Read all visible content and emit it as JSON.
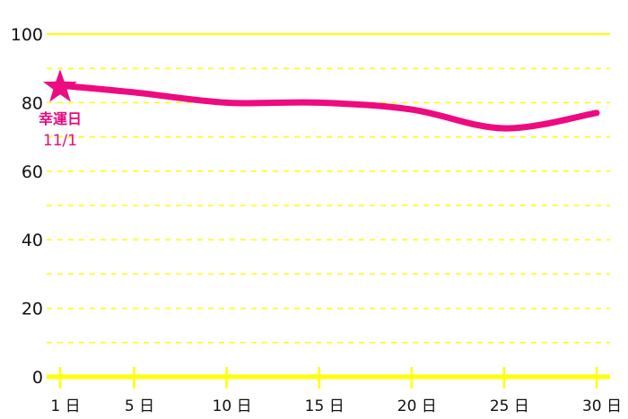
{
  "chart_data": {
    "type": "line",
    "title": "",
    "xlabel": "",
    "ylabel": "",
    "ylim": [
      0,
      100
    ],
    "yticks": [
      "0",
      "20",
      "40",
      "60",
      "80",
      "100"
    ],
    "xticks": [
      {
        "day": 1,
        "label": "1 日"
      },
      {
        "day": 5,
        "label": "5 日"
      },
      {
        "day": 10,
        "label": "10 日"
      },
      {
        "day": 15,
        "label": "15 日"
      },
      {
        "day": 20,
        "label": "20 日"
      },
      {
        "day": 25,
        "label": "25 日"
      },
      {
        "day": 30,
        "label": "30 日"
      }
    ],
    "x": [
      1,
      5,
      10,
      15,
      20,
      25,
      30
    ],
    "values": [
      85,
      83,
      80,
      80,
      78,
      72.5,
      77
    ],
    "grid": true,
    "annotation": {
      "day": 1,
      "value": 85,
      "line1": "幸運日",
      "line2": "11/1",
      "marker": "star-icon"
    },
    "colors": {
      "line": "#ee0a80",
      "grid": "#ffff00",
      "annotation": "#e8097e"
    }
  }
}
